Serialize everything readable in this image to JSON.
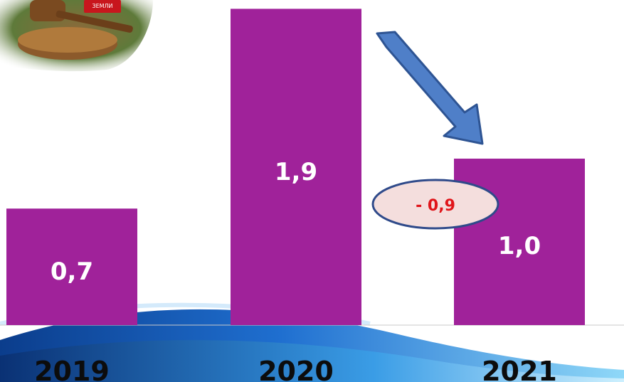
{
  "chart_data": {
    "type": "bar",
    "categories": [
      "2019",
      "2020",
      "2021"
    ],
    "values": [
      0.7,
      1.9,
      1.0
    ],
    "value_labels": [
      "0,7",
      "1,9",
      "1,0"
    ],
    "title": "",
    "xlabel": "",
    "ylabel": "",
    "grid": false,
    "legend": "none",
    "annotations": {
      "change_label": "- 0,9",
      "trend_arrow": "arrow-down-right-icon"
    }
  },
  "decor": {
    "logo_text": "ЗЕМЛИ",
    "logo_icon": "gavel-icon"
  },
  "colors": {
    "bar": "#a0229a",
    "value_label": "#ffffff",
    "change_label": "#e0151a",
    "change_bubble_fill": "#f4dedd",
    "change_bubble_border": "#2f4a8a",
    "arrow_fill": "#4f7fc8",
    "arrow_border": "#2e5493",
    "wave_blue": "#1f6fd0"
  }
}
